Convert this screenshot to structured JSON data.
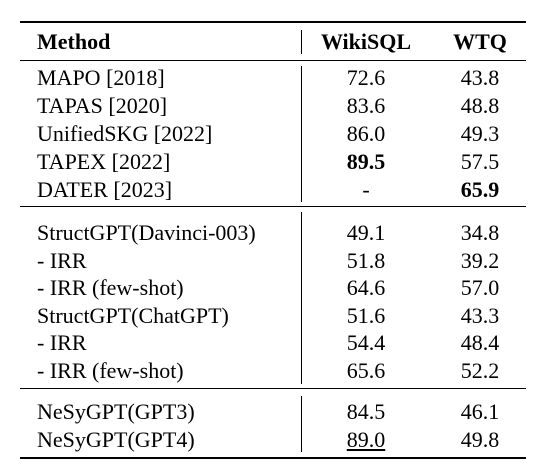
{
  "table": {
    "header": [
      "Method",
      "WikiSQL",
      "WTQ"
    ],
    "groups": [
      [
        [
          "MAPO [2018]",
          "72.6",
          "43.8"
        ],
        [
          "TAPAS [2020]",
          "83.6",
          "48.8"
        ],
        [
          "UnifiedSKG [2022]",
          "86.0",
          "49.3"
        ],
        [
          "TAPEX [2022]",
          "89.5",
          "57.5"
        ],
        [
          "DATER [2023]",
          "-",
          "65.9"
        ]
      ],
      [
        [
          "StructGPT(Davinci-003)",
          "49.1",
          "34.8"
        ],
        [
          "- IRR",
          "51.8",
          "39.2"
        ],
        [
          "- IRR (few-shot)",
          "64.6",
          "57.0"
        ],
        [
          "StructGPT(ChatGPT)",
          "51.6",
          "43.3"
        ],
        [
          "- IRR",
          "54.4",
          "48.4"
        ],
        [
          "- IRR (few-shot)",
          "65.6",
          "52.2"
        ]
      ],
      [
        [
          "NeSyGPT(GPT3)",
          "84.5",
          "46.1"
        ],
        [
          "NeSyGPT(GPT4)",
          "89.0",
          "49.8"
        ]
      ]
    ]
  }
}
